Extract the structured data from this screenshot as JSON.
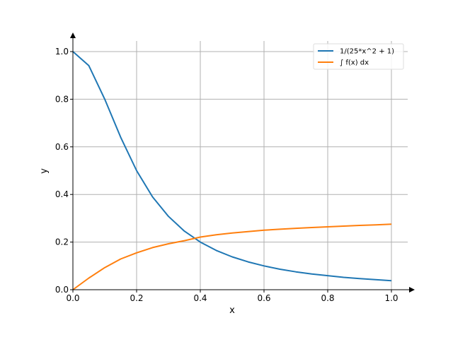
{
  "chart_data": {
    "type": "line",
    "xlabel": "x",
    "ylabel": "y",
    "xlim": [
      0,
      1.05
    ],
    "ylim": [
      0,
      1.05
    ],
    "xticks": [
      "0.0",
      "0.2",
      "0.4",
      "0.6",
      "0.8",
      "1.0"
    ],
    "yticks": [
      "0.0",
      "0.2",
      "0.4",
      "0.6",
      "0.8",
      "1.0"
    ],
    "grid": true,
    "legend_position": "top-right",
    "series": [
      {
        "name": "1/(25*x^2 + 1)",
        "color": "#1f77b4",
        "x": [
          0,
          0.05,
          0.1,
          0.15,
          0.2,
          0.25,
          0.3,
          0.35,
          0.4,
          0.45,
          0.5,
          0.55,
          0.6,
          0.65,
          0.7,
          0.75,
          0.8,
          0.85,
          0.9,
          0.95,
          1.0
        ],
        "values": [
          1.0,
          0.941,
          0.8,
          0.64,
          0.5,
          0.39,
          0.308,
          0.246,
          0.2,
          0.165,
          0.138,
          0.117,
          0.1,
          0.086,
          0.075,
          0.066,
          0.059,
          0.052,
          0.047,
          0.042,
          0.038
        ]
      },
      {
        "name": "∫ f(x) dx",
        "color": "#ff7f0e",
        "x": [
          0,
          0.05,
          0.1,
          0.15,
          0.2,
          0.25,
          0.3,
          0.35,
          0.4,
          0.45,
          0.5,
          0.55,
          0.6,
          0.65,
          0.7,
          0.75,
          0.8,
          0.85,
          0.9,
          0.95,
          1.0
        ],
        "values": [
          0.0,
          0.049,
          0.093,
          0.129,
          0.155,
          0.177,
          0.193,
          0.206,
          0.221,
          0.231,
          0.238,
          0.244,
          0.25,
          0.254,
          0.258,
          0.261,
          0.264,
          0.267,
          0.27,
          0.272,
          0.275
        ]
      }
    ]
  }
}
